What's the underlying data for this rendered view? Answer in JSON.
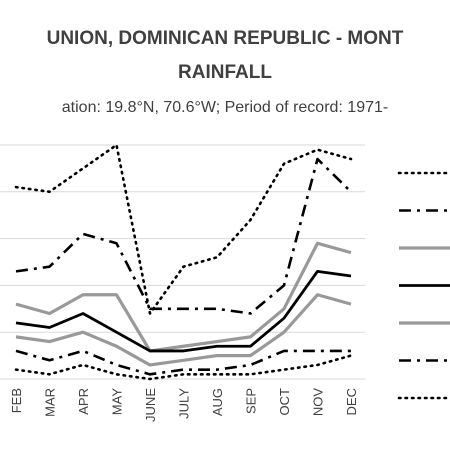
{
  "chart_data": {
    "type": "line",
    "title_line1": "UNION, DOMINICAN REPUBLIC - MONT",
    "title_line2": "RAINFALL",
    "subtitle": "ation: 19.8°N, 70.6°W; Period of record: 1971-",
    "categories": [
      "FEB",
      "MAR",
      "APR",
      "MAY",
      "JUNE",
      "JULY",
      "AUG",
      "SEP",
      "OCT",
      "NOV",
      "DEC"
    ],
    "ylim": [
      0,
      5
    ],
    "grid": true,
    "legend_position": "right",
    "series": [
      {
        "style": "dotted-black",
        "color": "#000000",
        "values": [
          4.1,
          4.0,
          4.5,
          5.0,
          1.4,
          2.4,
          2.6,
          3.4,
          4.6,
          4.9,
          4.7
        ]
      },
      {
        "style": "dashdot-black",
        "color": "#000000",
        "values": [
          2.3,
          2.4,
          3.1,
          2.9,
          1.5,
          1.5,
          1.5,
          1.4,
          2.0,
          4.7,
          4.0
        ]
      },
      {
        "style": "solid-gray",
        "color": "#909090",
        "values": [
          1.6,
          1.4,
          1.8,
          1.8,
          0.6,
          0.7,
          0.8,
          0.9,
          1.5,
          2.9,
          2.7
        ]
      },
      {
        "style": "solid-black",
        "color": "#000000",
        "values": [
          1.2,
          1.1,
          1.4,
          1.0,
          0.6,
          0.6,
          0.7,
          0.7,
          1.3,
          2.3,
          2.2
        ]
      },
      {
        "style": "solid-gray-lower",
        "color": "#909090",
        "values": [
          0.9,
          0.8,
          1.0,
          0.7,
          0.3,
          0.4,
          0.5,
          0.5,
          1.0,
          1.8,
          1.6
        ]
      },
      {
        "style": "dashdot-black-lower",
        "color": "#000000",
        "values": [
          0.6,
          0.4,
          0.6,
          0.3,
          0.1,
          0.2,
          0.2,
          0.3,
          0.6,
          0.6,
          0.6
        ]
      },
      {
        "style": "dotted-black-lower",
        "color": "#000000",
        "values": [
          0.2,
          0.1,
          0.3,
          0.1,
          0.0,
          0.1,
          0.1,
          0.1,
          0.2,
          0.3,
          0.5
        ]
      }
    ]
  }
}
